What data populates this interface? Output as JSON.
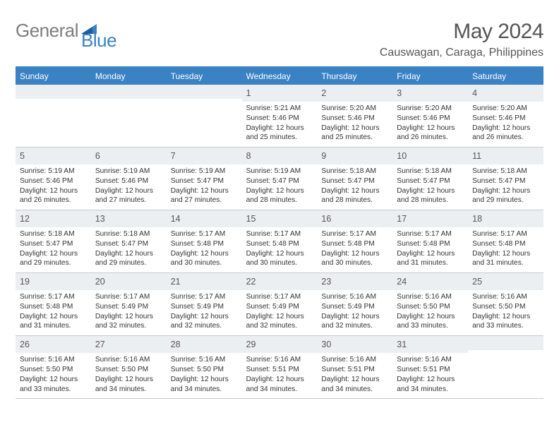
{
  "brand": {
    "text1": "General",
    "text2": "Blue"
  },
  "title": "May 2024",
  "location": "Causwagan, Caraga, Philippines",
  "colors": {
    "header_bg": "#3a82c4",
    "header_text": "#ffffff",
    "daynum_bg": "#eceff2",
    "border": "#c9c9c9",
    "body_text": "#333333",
    "title_text": "#555555"
  },
  "day_headers": [
    "Sunday",
    "Monday",
    "Tuesday",
    "Wednesday",
    "Thursday",
    "Friday",
    "Saturday"
  ],
  "weeks": [
    [
      {
        "n": "",
        "sunrise": "",
        "sunset": "",
        "daylight": ""
      },
      {
        "n": "",
        "sunrise": "",
        "sunset": "",
        "daylight": ""
      },
      {
        "n": "",
        "sunrise": "",
        "sunset": "",
        "daylight": ""
      },
      {
        "n": "1",
        "sunrise": "Sunrise: 5:21 AM",
        "sunset": "Sunset: 5:46 PM",
        "daylight": "Daylight: 12 hours and 25 minutes."
      },
      {
        "n": "2",
        "sunrise": "Sunrise: 5:20 AM",
        "sunset": "Sunset: 5:46 PM",
        "daylight": "Daylight: 12 hours and 25 minutes."
      },
      {
        "n": "3",
        "sunrise": "Sunrise: 5:20 AM",
        "sunset": "Sunset: 5:46 PM",
        "daylight": "Daylight: 12 hours and 26 minutes."
      },
      {
        "n": "4",
        "sunrise": "Sunrise: 5:20 AM",
        "sunset": "Sunset: 5:46 PM",
        "daylight": "Daylight: 12 hours and 26 minutes."
      }
    ],
    [
      {
        "n": "5",
        "sunrise": "Sunrise: 5:19 AM",
        "sunset": "Sunset: 5:46 PM",
        "daylight": "Daylight: 12 hours and 26 minutes."
      },
      {
        "n": "6",
        "sunrise": "Sunrise: 5:19 AM",
        "sunset": "Sunset: 5:46 PM",
        "daylight": "Daylight: 12 hours and 27 minutes."
      },
      {
        "n": "7",
        "sunrise": "Sunrise: 5:19 AM",
        "sunset": "Sunset: 5:47 PM",
        "daylight": "Daylight: 12 hours and 27 minutes."
      },
      {
        "n": "8",
        "sunrise": "Sunrise: 5:19 AM",
        "sunset": "Sunset: 5:47 PM",
        "daylight": "Daylight: 12 hours and 28 minutes."
      },
      {
        "n": "9",
        "sunrise": "Sunrise: 5:18 AM",
        "sunset": "Sunset: 5:47 PM",
        "daylight": "Daylight: 12 hours and 28 minutes."
      },
      {
        "n": "10",
        "sunrise": "Sunrise: 5:18 AM",
        "sunset": "Sunset: 5:47 PM",
        "daylight": "Daylight: 12 hours and 28 minutes."
      },
      {
        "n": "11",
        "sunrise": "Sunrise: 5:18 AM",
        "sunset": "Sunset: 5:47 PM",
        "daylight": "Daylight: 12 hours and 29 minutes."
      }
    ],
    [
      {
        "n": "12",
        "sunrise": "Sunrise: 5:18 AM",
        "sunset": "Sunset: 5:47 PM",
        "daylight": "Daylight: 12 hours and 29 minutes."
      },
      {
        "n": "13",
        "sunrise": "Sunrise: 5:18 AM",
        "sunset": "Sunset: 5:47 PM",
        "daylight": "Daylight: 12 hours and 29 minutes."
      },
      {
        "n": "14",
        "sunrise": "Sunrise: 5:17 AM",
        "sunset": "Sunset: 5:48 PM",
        "daylight": "Daylight: 12 hours and 30 minutes."
      },
      {
        "n": "15",
        "sunrise": "Sunrise: 5:17 AM",
        "sunset": "Sunset: 5:48 PM",
        "daylight": "Daylight: 12 hours and 30 minutes."
      },
      {
        "n": "16",
        "sunrise": "Sunrise: 5:17 AM",
        "sunset": "Sunset: 5:48 PM",
        "daylight": "Daylight: 12 hours and 30 minutes."
      },
      {
        "n": "17",
        "sunrise": "Sunrise: 5:17 AM",
        "sunset": "Sunset: 5:48 PM",
        "daylight": "Daylight: 12 hours and 31 minutes."
      },
      {
        "n": "18",
        "sunrise": "Sunrise: 5:17 AM",
        "sunset": "Sunset: 5:48 PM",
        "daylight": "Daylight: 12 hours and 31 minutes."
      }
    ],
    [
      {
        "n": "19",
        "sunrise": "Sunrise: 5:17 AM",
        "sunset": "Sunset: 5:48 PM",
        "daylight": "Daylight: 12 hours and 31 minutes."
      },
      {
        "n": "20",
        "sunrise": "Sunrise: 5:17 AM",
        "sunset": "Sunset: 5:49 PM",
        "daylight": "Daylight: 12 hours and 32 minutes."
      },
      {
        "n": "21",
        "sunrise": "Sunrise: 5:17 AM",
        "sunset": "Sunset: 5:49 PM",
        "daylight": "Daylight: 12 hours and 32 minutes."
      },
      {
        "n": "22",
        "sunrise": "Sunrise: 5:17 AM",
        "sunset": "Sunset: 5:49 PM",
        "daylight": "Daylight: 12 hours and 32 minutes."
      },
      {
        "n": "23",
        "sunrise": "Sunrise: 5:16 AM",
        "sunset": "Sunset: 5:49 PM",
        "daylight": "Daylight: 12 hours and 32 minutes."
      },
      {
        "n": "24",
        "sunrise": "Sunrise: 5:16 AM",
        "sunset": "Sunset: 5:50 PM",
        "daylight": "Daylight: 12 hours and 33 minutes."
      },
      {
        "n": "25",
        "sunrise": "Sunrise: 5:16 AM",
        "sunset": "Sunset: 5:50 PM",
        "daylight": "Daylight: 12 hours and 33 minutes."
      }
    ],
    [
      {
        "n": "26",
        "sunrise": "Sunrise: 5:16 AM",
        "sunset": "Sunset: 5:50 PM",
        "daylight": "Daylight: 12 hours and 33 minutes."
      },
      {
        "n": "27",
        "sunrise": "Sunrise: 5:16 AM",
        "sunset": "Sunset: 5:50 PM",
        "daylight": "Daylight: 12 hours and 34 minutes."
      },
      {
        "n": "28",
        "sunrise": "Sunrise: 5:16 AM",
        "sunset": "Sunset: 5:50 PM",
        "daylight": "Daylight: 12 hours and 34 minutes."
      },
      {
        "n": "29",
        "sunrise": "Sunrise: 5:16 AM",
        "sunset": "Sunset: 5:51 PM",
        "daylight": "Daylight: 12 hours and 34 minutes."
      },
      {
        "n": "30",
        "sunrise": "Sunrise: 5:16 AM",
        "sunset": "Sunset: 5:51 PM",
        "daylight": "Daylight: 12 hours and 34 minutes."
      },
      {
        "n": "31",
        "sunrise": "Sunrise: 5:16 AM",
        "sunset": "Sunset: 5:51 PM",
        "daylight": "Daylight: 12 hours and 34 minutes."
      },
      {
        "n": "",
        "sunrise": "",
        "sunset": "",
        "daylight": ""
      }
    ]
  ]
}
